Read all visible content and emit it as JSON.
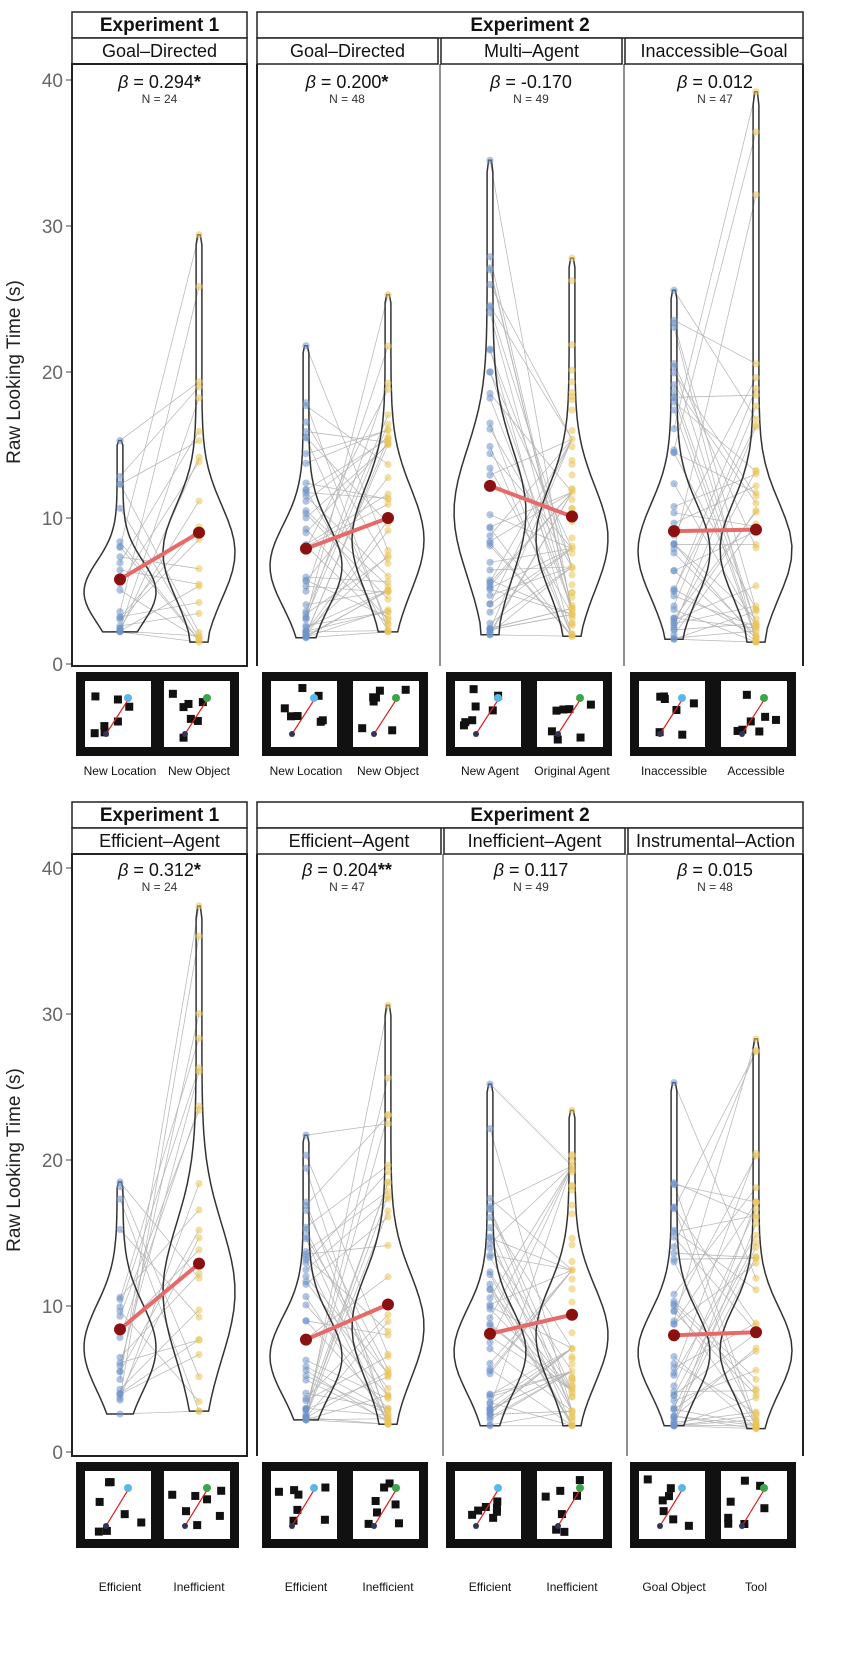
{
  "y_axis_label": "Raw Looking Time (s)",
  "y_ticks": [
    0,
    10,
    20,
    30,
    40
  ],
  "colors": {
    "blue_points": "#6f93c9",
    "yellow_points": "#e9c45a",
    "mean_line": "#e66a6a",
    "mean_point": "#8b1010",
    "pair_lines": "#b4b4b4",
    "violin_outline": "#333333"
  },
  "chart_data": [
    {
      "type": "violin",
      "row": "top",
      "experiment": "Experiment 1",
      "panel": "Goal–Directed",
      "beta": "0.294",
      "sig": "*",
      "n": "N = 24",
      "categories": [
        "New Location",
        "New Object"
      ],
      "means": [
        5.8,
        9.0
      ],
      "ranges": [
        [
          2.2,
          15.3
        ],
        [
          1.5,
          29.4
        ]
      ],
      "ylim": [
        0,
        40
      ]
    },
    {
      "type": "violin",
      "row": "top",
      "experiment": "Experiment 2",
      "panel": "Goal–Directed",
      "beta": "0.200",
      "sig": "*",
      "n": "N = 48",
      "categories": [
        "New Location",
        "New Object"
      ],
      "means": [
        7.9,
        10.0
      ],
      "ranges": [
        [
          1.8,
          21.8
        ],
        [
          2.2,
          25.3
        ]
      ],
      "ylim": [
        0,
        40
      ]
    },
    {
      "type": "violin",
      "row": "top",
      "experiment": "Experiment 2",
      "panel": "Multi–Agent",
      "beta": "-0.170",
      "sig": "",
      "n": "N = 49",
      "categories": [
        "New Agent",
        "Original Agent"
      ],
      "means": [
        12.2,
        10.1
      ],
      "ranges": [
        [
          2.0,
          34.5
        ],
        [
          1.9,
          27.8
        ]
      ],
      "ylim": [
        0,
        40
      ]
    },
    {
      "type": "violin",
      "row": "top",
      "experiment": "Experiment 2",
      "panel": "Inaccessible–Goal",
      "beta": "0.012",
      "sig": "",
      "n": "N = 47",
      "categories": [
        "Inaccessible",
        "Accessible"
      ],
      "means": [
        9.1,
        9.2
      ],
      "ranges": [
        [
          1.7,
          25.6
        ],
        [
          1.5,
          39.2
        ]
      ],
      "ylim": [
        0,
        40
      ]
    },
    {
      "type": "violin",
      "row": "bottom",
      "experiment": "Experiment 1",
      "panel": "Efficient–Agent",
      "beta": "0.312",
      "sig": "*",
      "n": "N = 24",
      "categories": [
        "Efficient",
        "Inefficient"
      ],
      "means": [
        8.4,
        12.9
      ],
      "ranges": [
        [
          2.6,
          18.5
        ],
        [
          2.8,
          37.4
        ]
      ],
      "ylim": [
        0,
        40
      ]
    },
    {
      "type": "violin",
      "row": "bottom",
      "experiment": "Experiment 2",
      "panel": "Efficient–Agent",
      "beta": "0.204",
      "sig": "**",
      "n": "N = 47",
      "categories": [
        "Efficient",
        "Inefficient"
      ],
      "means": [
        7.7,
        10.1
      ],
      "ranges": [
        [
          2.2,
          21.7
        ],
        [
          1.9,
          30.6
        ]
      ],
      "ylim": [
        0,
        40
      ]
    },
    {
      "type": "violin",
      "row": "bottom",
      "experiment": "Experiment 2",
      "panel": "Inefficient–Agent",
      "beta": "0.117",
      "sig": "",
      "n": "N = 49",
      "categories": [
        "Efficient",
        "Inefficient"
      ],
      "means": [
        8.1,
        9.4
      ],
      "ranges": [
        [
          1.8,
          25.2
        ],
        [
          1.8,
          23.4
        ]
      ],
      "ylim": [
        0,
        40
      ]
    },
    {
      "type": "violin",
      "row": "bottom",
      "experiment": "Experiment 2",
      "panel": "Instrumental–Action",
      "beta": "0.015",
      "sig": "",
      "n": "N = 48",
      "categories": [
        "Goal Object",
        "Tool"
      ],
      "means": [
        8.0,
        8.2
      ],
      "ranges": [
        [
          1.8,
          25.3
        ],
        [
          1.6,
          28.3
        ]
      ],
      "ylim": [
        0,
        40
      ]
    }
  ]
}
